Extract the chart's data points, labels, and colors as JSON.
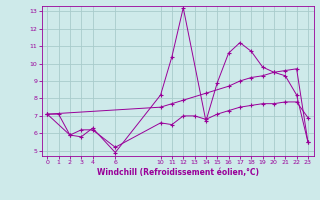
{
  "xlabel": "Windchill (Refroidissement éolien,°C)",
  "bg_color": "#ceeaea",
  "grid_color": "#a8cccc",
  "line_color": "#990099",
  "xlim": [
    -0.5,
    23.5
  ],
  "ylim": [
    4.7,
    13.3
  ],
  "xticks": [
    0,
    1,
    2,
    3,
    4,
    6,
    10,
    11,
    12,
    13,
    14,
    15,
    16,
    17,
    18,
    19,
    20,
    21,
    22,
    23
  ],
  "yticks": [
    5,
    6,
    7,
    8,
    9,
    10,
    11,
    12,
    13
  ],
  "series1_x": [
    0,
    1,
    2,
    3,
    4,
    6,
    10,
    11,
    12,
    13,
    14,
    15,
    16,
    17,
    18,
    19,
    20,
    21,
    22,
    23
  ],
  "series1_y": [
    7.1,
    7.1,
    5.9,
    6.2,
    6.2,
    5.2,
    6.6,
    6.5,
    7.0,
    7.0,
    6.8,
    7.1,
    7.3,
    7.5,
    7.6,
    7.7,
    7.7,
    7.8,
    7.8,
    6.9
  ],
  "series2_x": [
    0,
    2,
    3,
    4,
    6,
    10,
    11,
    12,
    14,
    15,
    16,
    17,
    18,
    19,
    20,
    21,
    22,
    23
  ],
  "series2_y": [
    7.1,
    5.9,
    5.8,
    6.3,
    4.9,
    8.2,
    10.4,
    13.2,
    6.7,
    8.9,
    10.6,
    11.2,
    10.7,
    9.8,
    9.5,
    9.3,
    8.2,
    5.5
  ],
  "series3_x": [
    0,
    10,
    11,
    12,
    14,
    16,
    17,
    18,
    19,
    20,
    21,
    22,
    23
  ],
  "series3_y": [
    7.1,
    7.5,
    7.7,
    7.9,
    8.3,
    8.7,
    9.0,
    9.2,
    9.3,
    9.5,
    9.6,
    9.7,
    5.5
  ]
}
